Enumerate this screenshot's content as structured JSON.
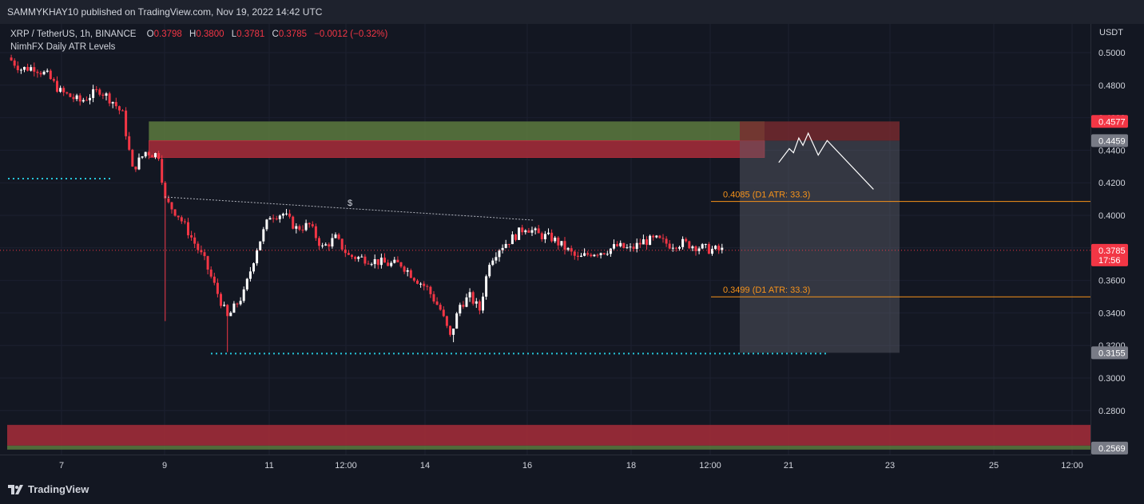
{
  "header": {
    "published": "SAMMYKHAY10 published on TradingView.com, Nov 19, 2022 14:42 UTC"
  },
  "legend": {
    "symbol": "XRP / TetherUS, 1h, BINANCE",
    "o_label": "O",
    "o_value": "0.3798",
    "h_label": "H",
    "h_value": "0.3800",
    "l_label": "L",
    "l_value": "0.3781",
    "c_label": "C",
    "c_value": "0.3785",
    "change": "−0.0012 (−0.32%)",
    "indicator": "NimhFX Daily ATR Levels"
  },
  "footer": {
    "brand": "TradingView"
  },
  "colors": {
    "bg": "#131722",
    "grid": "#1c2030",
    "up": "#ffffff",
    "down": "#f23645",
    "supply_green": "#5d7a3e",
    "supply_red": "#a02b39",
    "atr_line": "#f7931a",
    "dot_level": "#26c6da"
  },
  "chart_data": {
    "type": "candlestick",
    "currency": "USDT",
    "y_ticks": [
      "0.5000",
      "0.4800",
      "0.4600",
      "0.4400",
      "0.4200",
      "0.4000",
      "0.3800",
      "0.3600",
      "0.3400",
      "0.3200",
      "0.3000",
      "0.2800"
    ],
    "y_tick_values": [
      0.5,
      0.48,
      0.46,
      0.44,
      0.42,
      0.4,
      0.38,
      0.36,
      0.34,
      0.32,
      0.3,
      0.28
    ],
    "x_labels": [
      "7",
      "9",
      "11",
      "12:00",
      "14",
      "16",
      "18",
      "12:00",
      "21",
      "23",
      "25",
      "12:00"
    ],
    "price_tags": [
      {
        "label": "0.4577",
        "value": 0.4577,
        "color": "#f23645"
      },
      {
        "label": "0.4459",
        "value": 0.4459,
        "color": "#787b86"
      },
      {
        "label": "0.3785",
        "value": 0.3785,
        "color": "#f23645",
        "sub": "17:56"
      },
      {
        "label": "0.3155",
        "value": 0.3155,
        "color": "#787b86"
      },
      {
        "label": "0.2569",
        "value": 0.2569,
        "color": "#787b86"
      }
    ],
    "atr_levels": [
      {
        "label": "0.4085 (D1 ATR: 33.3)",
        "value": 0.4085
      },
      {
        "label": "0.3499 (D1 ATR: 33.3)",
        "value": 0.3499
      }
    ],
    "trendline_label": "$",
    "path_anchors": [
      {
        "t": 0,
        "p": 0.497
      },
      {
        "t": 4,
        "p": 0.49
      },
      {
        "t": 8,
        "p": 0.491
      },
      {
        "t": 12,
        "p": 0.486
      },
      {
        "t": 16,
        "p": 0.476
      },
      {
        "t": 22,
        "p": 0.47
      },
      {
        "t": 28,
        "p": 0.477
      },
      {
        "t": 32,
        "p": 0.47
      },
      {
        "t": 35,
        "p": 0.462
      },
      {
        "t": 38,
        "p": 0.428
      },
      {
        "t": 42,
        "p": 0.439
      },
      {
        "t": 46,
        "p": 0.437
      },
      {
        "t": 48,
        "p": 0.409
      },
      {
        "t": 52,
        "p": 0.4
      },
      {
        "t": 55,
        "p": 0.39
      },
      {
        "t": 60,
        "p": 0.372
      },
      {
        "t": 64,
        "p": 0.352
      },
      {
        "t": 67,
        "p": 0.337
      },
      {
        "t": 72,
        "p": 0.352
      },
      {
        "t": 76,
        "p": 0.38
      },
      {
        "t": 80,
        "p": 0.4
      },
      {
        "t": 84,
        "p": 0.401
      },
      {
        "t": 88,
        "p": 0.392
      },
      {
        "t": 92,
        "p": 0.394
      },
      {
        "t": 96,
        "p": 0.38
      },
      {
        "t": 100,
        "p": 0.386
      },
      {
        "t": 104,
        "p": 0.375
      },
      {
        "t": 110,
        "p": 0.373
      },
      {
        "t": 116,
        "p": 0.37
      },
      {
        "t": 120,
        "p": 0.37
      },
      {
        "t": 124,
        "p": 0.362
      },
      {
        "t": 128,
        "p": 0.355
      },
      {
        "t": 132,
        "p": 0.342
      },
      {
        "t": 135,
        "p": 0.325
      },
      {
        "t": 138,
        "p": 0.345
      },
      {
        "t": 141,
        "p": 0.35
      },
      {
        "t": 144,
        "p": 0.342
      },
      {
        "t": 147,
        "p": 0.372
      },
      {
        "t": 150,
        "p": 0.38
      },
      {
        "t": 154,
        "p": 0.386
      },
      {
        "t": 158,
        "p": 0.393
      },
      {
        "t": 162,
        "p": 0.388
      },
      {
        "t": 166,
        "p": 0.386
      },
      {
        "t": 170,
        "p": 0.38
      },
      {
        "t": 174,
        "p": 0.373
      },
      {
        "t": 178,
        "p": 0.377
      },
      {
        "t": 182,
        "p": 0.378
      },
      {
        "t": 186,
        "p": 0.381
      },
      {
        "t": 190,
        "p": 0.379
      },
      {
        "t": 194,
        "p": 0.384
      },
      {
        "t": 198,
        "p": 0.385
      },
      {
        "t": 202,
        "p": 0.382
      },
      {
        "t": 206,
        "p": 0.383
      },
      {
        "t": 210,
        "p": 0.381
      },
      {
        "t": 214,
        "p": 0.379
      },
      {
        "t": 218,
        "p": 0.3785
      }
    ],
    "wicks": [
      {
        "t": 48,
        "low": 0.335
      },
      {
        "t": 67,
        "low": 0.316
      },
      {
        "t": 136,
        "low": 0.322
      }
    ],
    "projection_path": [
      {
        "x": 20.6,
        "p": 0.4325
      },
      {
        "x": 20.8,
        "p": 0.441
      },
      {
        "x": 20.88,
        "p": 0.4385
      },
      {
        "x": 20.98,
        "p": 0.4475
      },
      {
        "x": 21.06,
        "p": 0.443
      },
      {
        "x": 21.16,
        "p": 0.4505
      },
      {
        "x": 21.35,
        "p": 0.437
      },
      {
        "x": 21.52,
        "p": 0.446
      },
      {
        "x": 22.4,
        "p": 0.416
      }
    ]
  }
}
